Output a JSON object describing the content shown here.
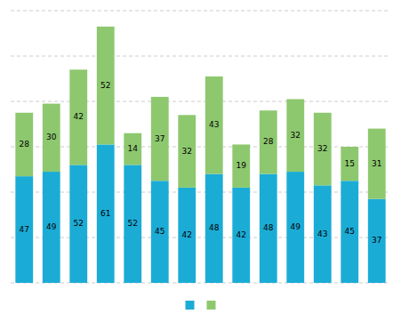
{
  "chart_data": {
    "type": "bar",
    "stacked": true,
    "categories": [
      null,
      null,
      null,
      null,
      null,
      null,
      null,
      null,
      null,
      null,
      null,
      null,
      null,
      null
    ],
    "series": [
      {
        "color": "#1bacd6",
        "values": [
          47,
          49,
          52,
          61,
          52,
          45,
          42,
          48,
          42,
          48,
          49,
          43,
          45,
          37
        ]
      },
      {
        "color": "#8dc86e",
        "values": [
          28,
          30,
          42,
          52,
          14,
          37,
          32,
          43,
          19,
          28,
          32,
          32,
          15,
          31
        ]
      }
    ],
    "ylim": [
      0,
      120
    ],
    "yticks": [
      0,
      20,
      40,
      60,
      80,
      100,
      120
    ],
    "grid": true,
    "legend": "bottom",
    "data_labels": true,
    "tick_labels": false
  }
}
